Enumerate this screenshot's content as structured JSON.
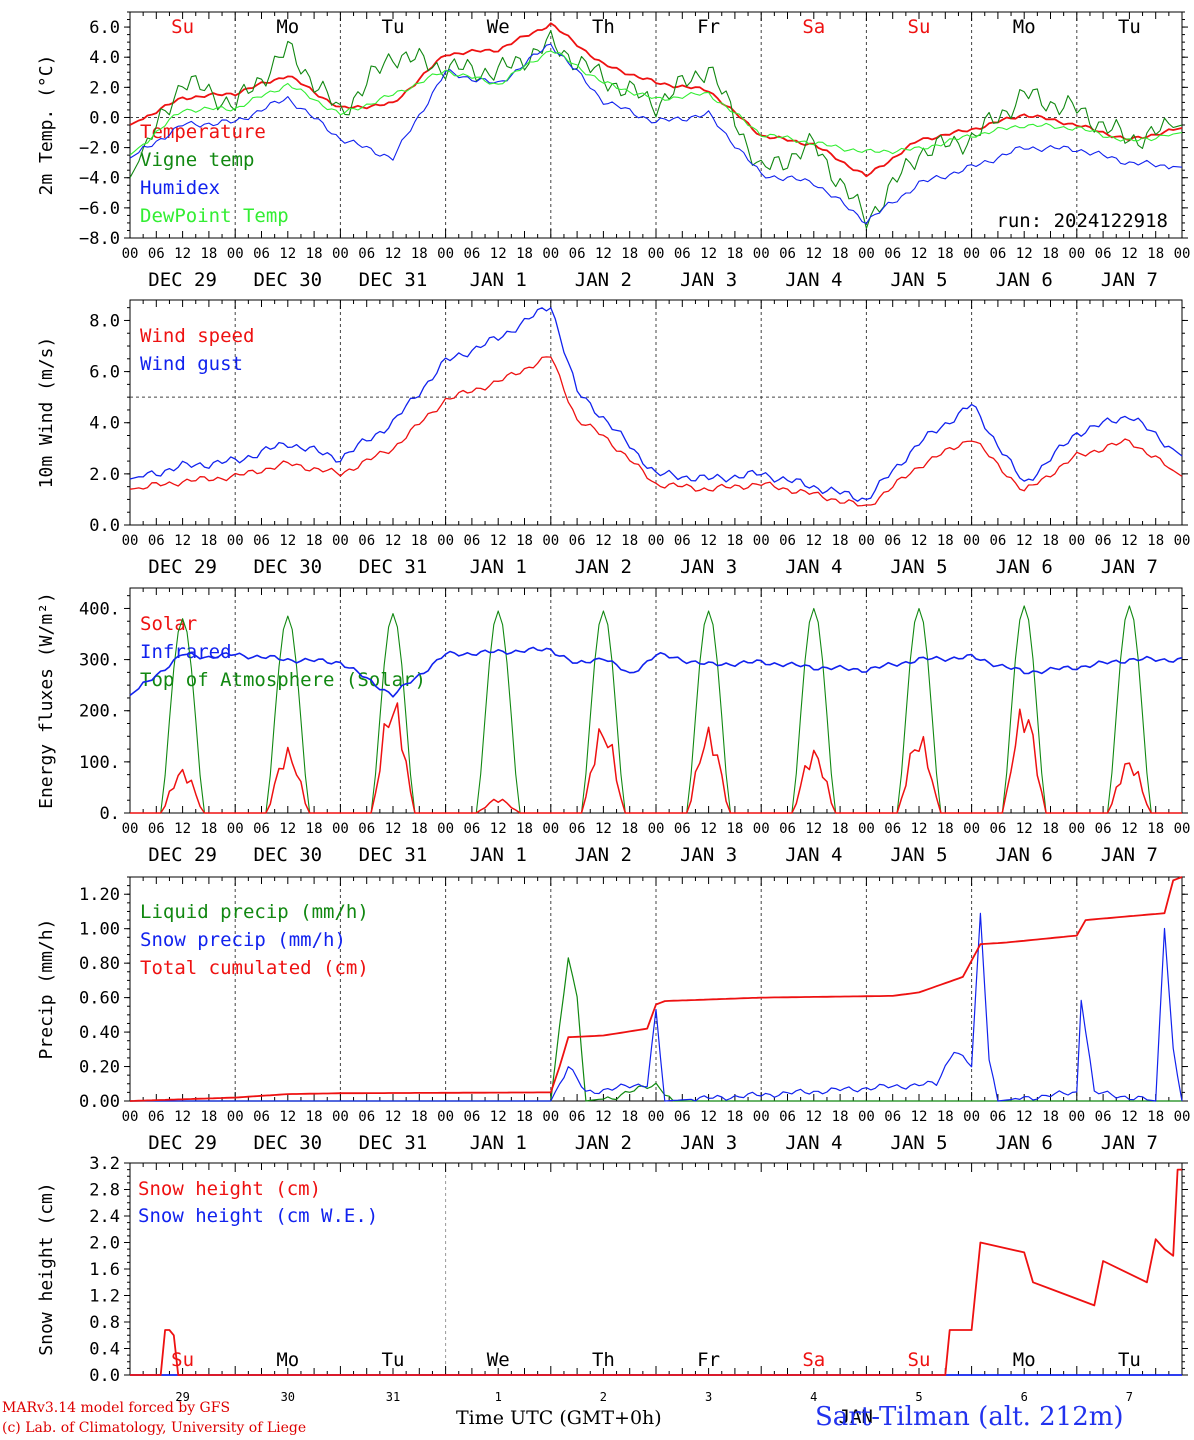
{
  "footer": {
    "credit_line1": "MARv3.14 model forced by GFS",
    "credit_line2": "(c) Lab. of Climatology, University of Liege",
    "station": "Sart-Tilman (alt. 212m)",
    "time_axis_title": "Time UTC (GMT+0h)"
  },
  "colors": {
    "red": "#ee1111",
    "green": "#118811",
    "blue": "#1122ee",
    "light_green": "#33ee33",
    "weekend_red": "#ee1111"
  },
  "time_axis": {
    "hour_labels": [
      "00",
      "06",
      "12",
      "18"
    ],
    "day_labels": [
      "DEC 29",
      "DEC 30",
      "DEC 31",
      "JAN  1",
      "JAN  2",
      "JAN  3",
      "JAN  4",
      "JAN  5",
      "JAN  6",
      "JAN  7"
    ],
    "bottom_day_numbers": [
      "29",
      "30",
      "31",
      "1",
      "2",
      "3",
      "4",
      "5",
      "6",
      "7"
    ],
    "bottom_month_overlap": "JAN",
    "weekdays": [
      "Su",
      "Mo",
      "Tu",
      "We",
      "Th",
      "Fr",
      "Sa",
      "Su",
      "Mo",
      "Tu"
    ],
    "weekend_flags": [
      true,
      false,
      false,
      false,
      false,
      false,
      true,
      true,
      false,
      false
    ]
  },
  "chart_data": [
    {
      "type": "line",
      "ylabel": "2m Temp. (°C)",
      "ylim": [
        -8,
        7
      ],
      "yticks": [
        "6.0",
        "4.0",
        "2.0",
        "0.0",
        "−2.0",
        "−4.0",
        "−6.0",
        "−8.0"
      ],
      "ytick_values": [
        6,
        4,
        2,
        0,
        -2,
        -4,
        -6,
        -8
      ],
      "ref_line": 0,
      "annotation": "run: 2024122918",
      "legend": [
        "Temperature",
        "Vigne temp",
        "Humidex",
        "DewPoint Temp"
      ],
      "x_hours": [
        0,
        12,
        24,
        36,
        48,
        60,
        72,
        84,
        96,
        108,
        120,
        132,
        144,
        156,
        168,
        180,
        192,
        204,
        216,
        228,
        240
      ],
      "series": [
        {
          "name": "Temperature",
          "color": "red",
          "values": [
            -0.5,
            1.3,
            1.6,
            2.8,
            0.6,
            0.9,
            4.2,
            4.5,
            6.2,
            3.5,
            2.3,
            1.8,
            -1.2,
            -1.8,
            -3.9,
            -1.5,
            -0.8,
            0.2,
            -0.5,
            -1.5,
            -0.7
          ]
        },
        {
          "name": "Vigne temp",
          "color": "green",
          "values": [
            -4.0,
            2.5,
            0.8,
            4.5,
            0.3,
            4.2,
            3.3,
            3.0,
            4.9,
            2.6,
            0.9,
            3.4,
            -3.6,
            -1.8,
            -6.8,
            -2.3,
            -1.4,
            1.5,
            0.5,
            -1.5,
            -0.5
          ]
        },
        {
          "name": "Humidex",
          "color": "blue",
          "values": [
            -2.7,
            -0.5,
            -0.3,
            1.3,
            -1.4,
            -2.7,
            3.0,
            2.2,
            4.9,
            1.1,
            -0.3,
            0.2,
            -3.8,
            -4.3,
            -6.9,
            -4.4,
            -3.3,
            -2.0,
            -2.1,
            -3.0,
            -3.3
          ]
        },
        {
          "name": "DewPoint Temp",
          "color": "light_green",
          "values": [
            -2.5,
            0.5,
            0.6,
            2.2,
            0.2,
            1.5,
            3.1,
            2.2,
            4.5,
            2.3,
            1.2,
            1.6,
            -1.1,
            -1.7,
            -2.3,
            -2.1,
            -1.2,
            -0.5,
            -0.7,
            -1.6,
            -1.0
          ]
        }
      ]
    },
    {
      "type": "line",
      "ylabel": "10m Wind (m/s)",
      "ylim": [
        0,
        8.8
      ],
      "yticks": [
        "8.0",
        "6.0",
        "4.0",
        "2.0",
        "0.0"
      ],
      "ytick_values": [
        8,
        6,
        4,
        2,
        0
      ],
      "ref_line": 5,
      "legend": [
        "Wind speed",
        "Wind gust"
      ],
      "x_hours": [
        0,
        12,
        24,
        36,
        48,
        60,
        72,
        84,
        96,
        102,
        108,
        120,
        132,
        144,
        156,
        168,
        180,
        192,
        204,
        216,
        228,
        240
      ],
      "series": [
        {
          "name": "Wind speed",
          "color": "red",
          "values": [
            1.4,
            1.7,
            1.9,
            2.4,
            2.0,
            3.0,
            4.9,
            5.6,
            6.6,
            4.1,
            3.5,
            1.6,
            1.4,
            1.6,
            1.2,
            0.7,
            2.3,
            3.4,
            1.3,
            2.7,
            3.3,
            1.9
          ]
        },
        {
          "name": "Wind gust",
          "color": "blue",
          "values": [
            1.8,
            2.3,
            2.5,
            3.2,
            2.6,
            4.0,
            6.4,
            7.3,
            8.6,
            5.2,
            4.2,
            2.0,
            1.8,
            2.0,
            1.5,
            1.0,
            3.2,
            4.7,
            1.6,
            3.6,
            4.3,
            2.7
          ]
        }
      ]
    },
    {
      "type": "line",
      "ylabel": "Energy fluxes (W/m²)",
      "ylim": [
        0,
        440
      ],
      "yticks": [
        "400.",
        "300.",
        "200.",
        "100.",
        "0."
      ],
      "ytick_values": [
        400,
        300,
        200,
        100,
        0
      ],
      "legend": [
        "Solar",
        "Infrared",
        "Top of Atmosphere (Solar)"
      ],
      "solar_daily_peak": [
        90,
        130,
        235,
        30,
        180,
        170,
        130,
        160,
        220,
        110
      ],
      "toa_daily_peak": [
        380,
        385,
        390,
        395,
        395,
        395,
        400,
        400,
        405,
        405
      ],
      "infrared_hourly_nodes": [
        0,
        12,
        18,
        24,
        36,
        48,
        60,
        72,
        84,
        96,
        102,
        108,
        114,
        120,
        132,
        144,
        156,
        168,
        180,
        192,
        204,
        216,
        228,
        240
      ],
      "infrared_values": [
        230,
        310,
        305,
        310,
        300,
        295,
        230,
        310,
        315,
        320,
        290,
        305,
        270,
        310,
        290,
        295,
        285,
        280,
        300,
        305,
        275,
        285,
        300,
        300
      ],
      "series": [
        {
          "name": "Solar",
          "color": "red"
        },
        {
          "name": "Infrared",
          "color": "blue"
        },
        {
          "name": "Top of Atmosphere (Solar)",
          "color": "green"
        }
      ]
    },
    {
      "type": "line",
      "ylabel": "Precip (mm/h)",
      "ylim": [
        0,
        1.3
      ],
      "yticks": [
        "1.20",
        "1.00",
        "0.80",
        "0.60",
        "0.40",
        "0.20",
        "0.00"
      ],
      "ytick_values": [
        1.2,
        1.0,
        0.8,
        0.6,
        0.4,
        0.2,
        0.0
      ],
      "legend": [
        "Liquid precip (mm/h)",
        "Snow precip (mm/h)",
        "Total cumulated (cm)"
      ],
      "series": [
        {
          "name": "Liquid precip (mm/h)",
          "color": "green",
          "x_hours": [
            0,
            96,
            100,
            102,
            104,
            110,
            120,
            122,
            124,
            240
          ],
          "values": [
            0,
            0,
            0.85,
            0.6,
            0,
            0.02,
            0.1,
            0.05,
            0,
            0
          ]
        },
        {
          "name": "Snow precip (mm/h)",
          "color": "blue",
          "x_hours": [
            0,
            96,
            100,
            104,
            118,
            120,
            122,
            184,
            188,
            192,
            194,
            196,
            198,
            216,
            217,
            220,
            234,
            236,
            238,
            240
          ],
          "values": [
            0,
            0,
            0.2,
            0.05,
            0.1,
            0.52,
            0,
            0.1,
            0.3,
            0.2,
            1.08,
            0.25,
            0,
            0.05,
            0.6,
            0.05,
            0,
            1.02,
            0.3,
            0
          ]
        },
        {
          "name": "Total cumulated (cm)",
          "color": "red",
          "x_hours": [
            0,
            24,
            36,
            48,
            96,
            98,
            100,
            108,
            118,
            120,
            122,
            144,
            174,
            180,
            190,
            194,
            200,
            216,
            218,
            236,
            238,
            240
          ],
          "values": [
            0,
            0.02,
            0.04,
            0.045,
            0.05,
            0.2,
            0.37,
            0.38,
            0.42,
            0.56,
            0.58,
            0.6,
            0.61,
            0.63,
            0.72,
            0.91,
            0.92,
            0.96,
            1.05,
            1.09,
            1.28,
            1.3
          ]
        }
      ]
    },
    {
      "type": "line",
      "ylabel": "Snow height (cm)",
      "ylim": [
        0,
        3.2
      ],
      "yticks": [
        "3.2",
        "2.8",
        "2.4",
        "2.0",
        "1.6",
        "1.2",
        "0.8",
        "0.4",
        "0.0"
      ],
      "ytick_values": [
        3.2,
        2.8,
        2.4,
        2.0,
        1.6,
        1.2,
        0.8,
        0.4,
        0.0
      ],
      "legend": [
        "Snow height (cm)",
        "Snow height (cm W.E.)"
      ],
      "series": [
        {
          "name": "Snow height (cm)",
          "color": "red",
          "x_hours": [
            0,
            7,
            8,
            9,
            10,
            11,
            186,
            187,
            192,
            194,
            204,
            206,
            210,
            220,
            222,
            232,
            234,
            236,
            238,
            239,
            240
          ],
          "values": [
            0,
            0,
            0.68,
            0.68,
            0.6,
            0,
            0,
            0.68,
            0.68,
            2.0,
            1.85,
            1.4,
            1.3,
            1.05,
            1.72,
            1.4,
            2.05,
            1.9,
            1.8,
            3.1,
            3.1
          ]
        },
        {
          "name": "Snow height (cm W.E.)",
          "color": "blue",
          "x_hours": [
            0,
            240
          ],
          "values": [
            0,
            0
          ]
        }
      ]
    }
  ]
}
